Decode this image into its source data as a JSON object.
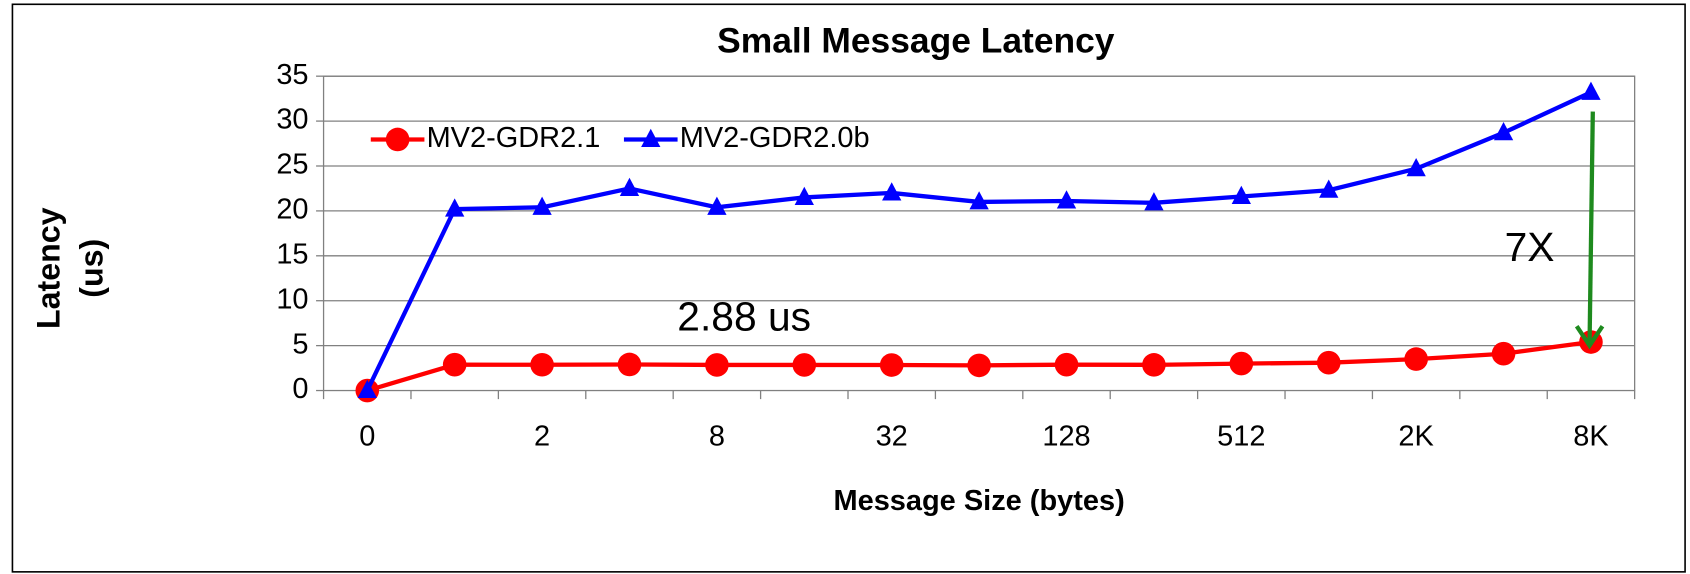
{
  "chart_data": {
    "type": "line",
    "title": "Small Message Latency",
    "x_label": "Message Size (bytes)",
    "y_label": [
      "Latency",
      "(us)"
    ],
    "categories": [
      "0",
      null,
      "2",
      null,
      "8",
      null,
      "32",
      null,
      "128",
      null,
      "512",
      null,
      "2K",
      null,
      "8K"
    ],
    "series": [
      {
        "name": "MV2-GDR2.1",
        "color": "#ff0000",
        "marker": "circle",
        "values": [
          0,
          2.88,
          2.87,
          2.9,
          2.85,
          2.85,
          2.84,
          2.8,
          2.88,
          2.86,
          3.0,
          3.1,
          3.5,
          4.1,
          5.4
        ]
      },
      {
        "name": "MV2-GDR2.0b",
        "color": "#0000ff",
        "marker": "triangle",
        "values": [
          0,
          20.2,
          20.4,
          22.5,
          20.4,
          21.5,
          22.0,
          21.0,
          21.1,
          20.9,
          21.6,
          22.3,
          24.7,
          28.7,
          33.2
        ]
      }
    ],
    "ylim": [
      0,
      35
    ],
    "yticks": [
      0,
      5,
      10,
      15,
      20,
      25,
      30,
      35
    ],
    "grid": true,
    "legend": "upper left",
    "annotations": [
      {
        "text": "2.88 us",
        "color": "#e8174a"
      },
      {
        "text": "7X",
        "color": "#1e8a1e"
      }
    ]
  }
}
